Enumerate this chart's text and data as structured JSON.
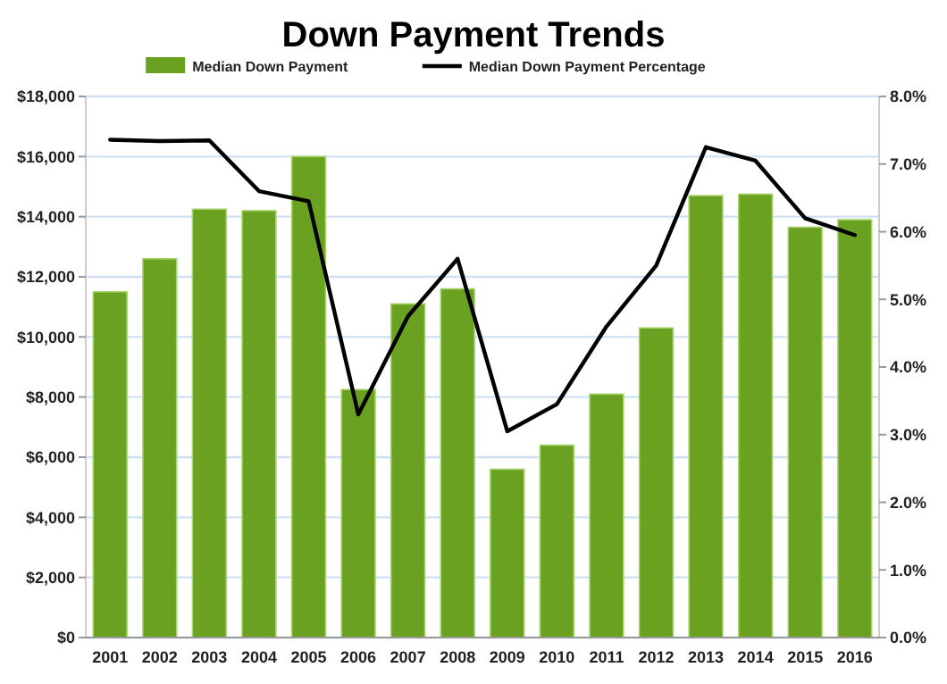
{
  "chart_data": {
    "type": "bar",
    "title": "Down Payment Trends",
    "categories": [
      "2001",
      "2002",
      "2003",
      "2004",
      "2005",
      "2006",
      "2007",
      "2008",
      "2009",
      "2010",
      "2011",
      "2012",
      "2013",
      "2014",
      "2015",
      "2016"
    ],
    "series": [
      {
        "name": "Median Down Payment",
        "color": "#6aa121",
        "values": [
          11500,
          12600,
          14250,
          14200,
          16000,
          8250,
          11100,
          11600,
          5600,
          6400,
          8100,
          10300,
          14700,
          14750,
          13650,
          13900
        ]
      },
      {
        "name": "Median Down Payment Percentage",
        "type": "line",
        "axis": "y2",
        "color": "#000000",
        "values": [
          7.36,
          7.34,
          7.35,
          6.6,
          6.45,
          3.3,
          4.75,
          5.6,
          3.05,
          3.45,
          4.6,
          5.5,
          7.25,
          7.05,
          6.2,
          5.95
        ]
      }
    ],
    "ylim": [
      0,
      18000
    ],
    "yticks": [
      {
        "value": 0,
        "label": "$0"
      },
      {
        "value": 2000,
        "label": "$2,000"
      },
      {
        "value": 4000,
        "label": "$4,000"
      },
      {
        "value": 6000,
        "label": "$6,000"
      },
      {
        "value": 8000,
        "label": "$8,000"
      },
      {
        "value": 10000,
        "label": "$10,000"
      },
      {
        "value": 12000,
        "label": "$12,000"
      },
      {
        "value": 14000,
        "label": "$14,000"
      },
      {
        "value": 16000,
        "label": "$16,000"
      },
      {
        "value": 18000,
        "label": "$18,000"
      }
    ],
    "y2lim": [
      0,
      8
    ],
    "y2ticks": [
      {
        "value": 0,
        "label": "0.0%"
      },
      {
        "value": 1,
        "label": "1.0%"
      },
      {
        "value": 2,
        "label": "2.0%"
      },
      {
        "value": 3,
        "label": "3.0%"
      },
      {
        "value": 4,
        "label": "4.0%"
      },
      {
        "value": 5,
        "label": "5.0%"
      },
      {
        "value": 6,
        "label": "6.0%"
      },
      {
        "value": 7,
        "label": "7.0%"
      },
      {
        "value": 8,
        "label": "8.0%"
      }
    ],
    "grid": "y",
    "legend": "top",
    "marker": "none",
    "line_style": "solid"
  }
}
